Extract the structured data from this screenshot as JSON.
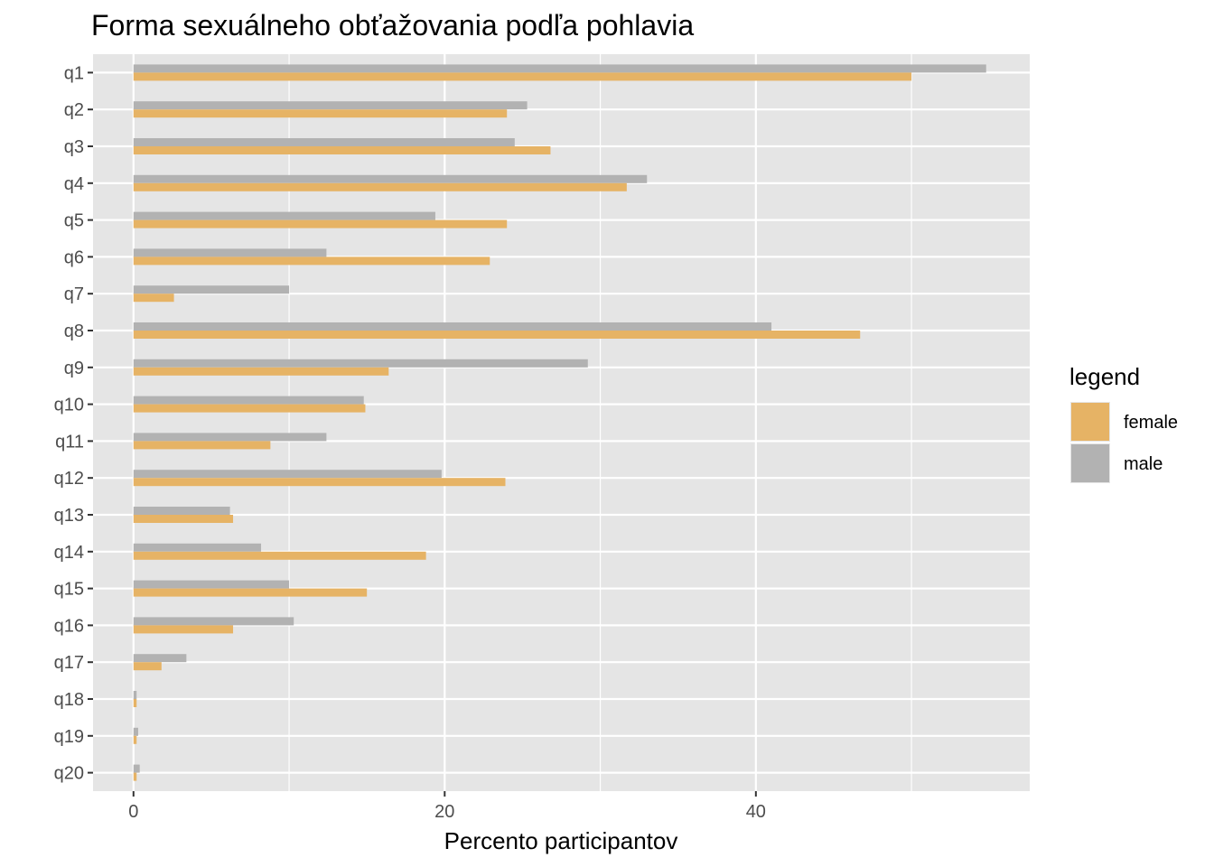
{
  "chart_data": {
    "type": "bar",
    "orientation": "horizontal",
    "title": "Forma sexuálneho obťažovania podľa pohlavia",
    "xlabel": "Percento participantov",
    "ylabel": "",
    "xlim": [
      -2.6,
      57.6
    ],
    "x_ticks": [
      0,
      20,
      40
    ],
    "grid": true,
    "categories": [
      "q1",
      "q2",
      "q3",
      "q4",
      "q5",
      "q6",
      "q7",
      "q8",
      "q9",
      "q10",
      "q11",
      "q12",
      "q13",
      "q14",
      "q15",
      "q16",
      "q17",
      "q18",
      "q19",
      "q20"
    ],
    "series": [
      {
        "name": "female",
        "color": "#E6B365",
        "values": [
          50.0,
          24.0,
          26.8,
          31.7,
          24.0,
          22.9,
          2.6,
          46.7,
          16.4,
          14.9,
          8.8,
          23.9,
          6.4,
          18.8,
          15.0,
          6.4,
          1.8,
          0.2,
          0.2,
          0.2
        ]
      },
      {
        "name": "male",
        "color": "#B2B2B2",
        "values": [
          54.8,
          25.3,
          24.5,
          33.0,
          19.4,
          12.4,
          10.0,
          41.0,
          29.2,
          14.8,
          12.4,
          19.8,
          6.2,
          8.2,
          10.0,
          10.3,
          3.4,
          0.2,
          0.3,
          0.4
        ]
      }
    ],
    "legend": {
      "title": "legend",
      "position": "right",
      "entries": [
        "female",
        "male"
      ]
    }
  },
  "colors": {
    "panel_background": "#E5E5E5",
    "grid_major": "#FFFFFF",
    "grid_minor": "#F2F2F2",
    "female": "#E6B365",
    "male": "#B2B2B2"
  }
}
